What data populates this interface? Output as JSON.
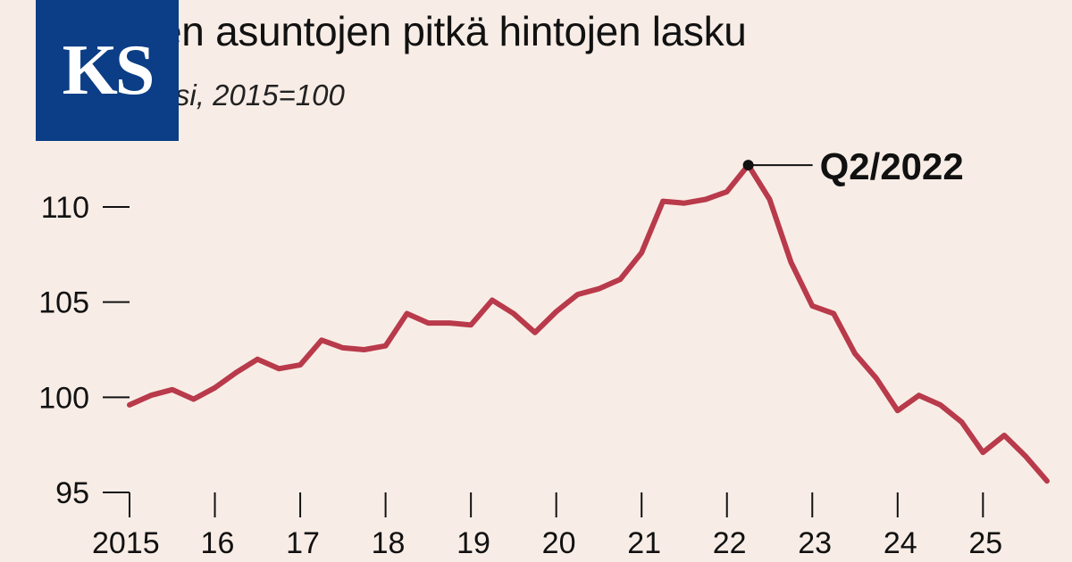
{
  "header": {
    "title": "Vanhojen asuntojen pitkä hintojen lasku",
    "subtitle": "Hintaindeksi, 2015=100",
    "logo_text": "KS",
    "logo_color": "#0b3e86"
  },
  "chart_data": {
    "type": "line",
    "title": "Vanhojen asuntojen pitkä hintojen lasku",
    "subtitle": "Hintaindeksi, 2015=100",
    "xlabel": "",
    "ylabel": "",
    "x_ticks": [
      "2015",
      "16",
      "17",
      "18",
      "19",
      "20",
      "21",
      "22",
      "23",
      "24",
      "25"
    ],
    "y_ticks": [
      95,
      100,
      105,
      110
    ],
    "ylim": [
      95,
      113
    ],
    "xlim": [
      2015.0,
      2025.75
    ],
    "grid": false,
    "line_color": "#b83a4b",
    "annotation": {
      "label": "Q2/2022",
      "x": 2022.25,
      "y": 112.2
    },
    "x": [
      2015.0,
      2015.25,
      2015.5,
      2015.75,
      2016.0,
      2016.25,
      2016.5,
      2016.75,
      2017.0,
      2017.25,
      2017.5,
      2017.75,
      2018.0,
      2018.25,
      2018.5,
      2018.75,
      2019.0,
      2019.25,
      2019.5,
      2019.75,
      2020.0,
      2020.25,
      2020.5,
      2020.75,
      2021.0,
      2021.25,
      2021.5,
      2021.75,
      2022.0,
      2022.25,
      2022.5,
      2022.75,
      2023.0,
      2023.25,
      2023.5,
      2023.75,
      2024.0,
      2024.25,
      2024.5,
      2024.75,
      2025.0,
      2025.25,
      2025.5,
      2025.75
    ],
    "series": [
      {
        "values": [
          99.6,
          100.1,
          100.4,
          99.9,
          100.5,
          101.3,
          102.0,
          101.5,
          101.7,
          103.0,
          102.6,
          102.5,
          102.7,
          104.4,
          103.9,
          103.9,
          103.8,
          105.1,
          104.4,
          103.4,
          104.5,
          105.4,
          105.7,
          106.2,
          107.6,
          110.3,
          110.2,
          110.4,
          110.8,
          112.2,
          110.4,
          107.1,
          104.8,
          104.4,
          102.3,
          101.0,
          99.3,
          100.1,
          99.6,
          98.7,
          97.1,
          98.0,
          96.9,
          95.6
        ]
      }
    ]
  }
}
